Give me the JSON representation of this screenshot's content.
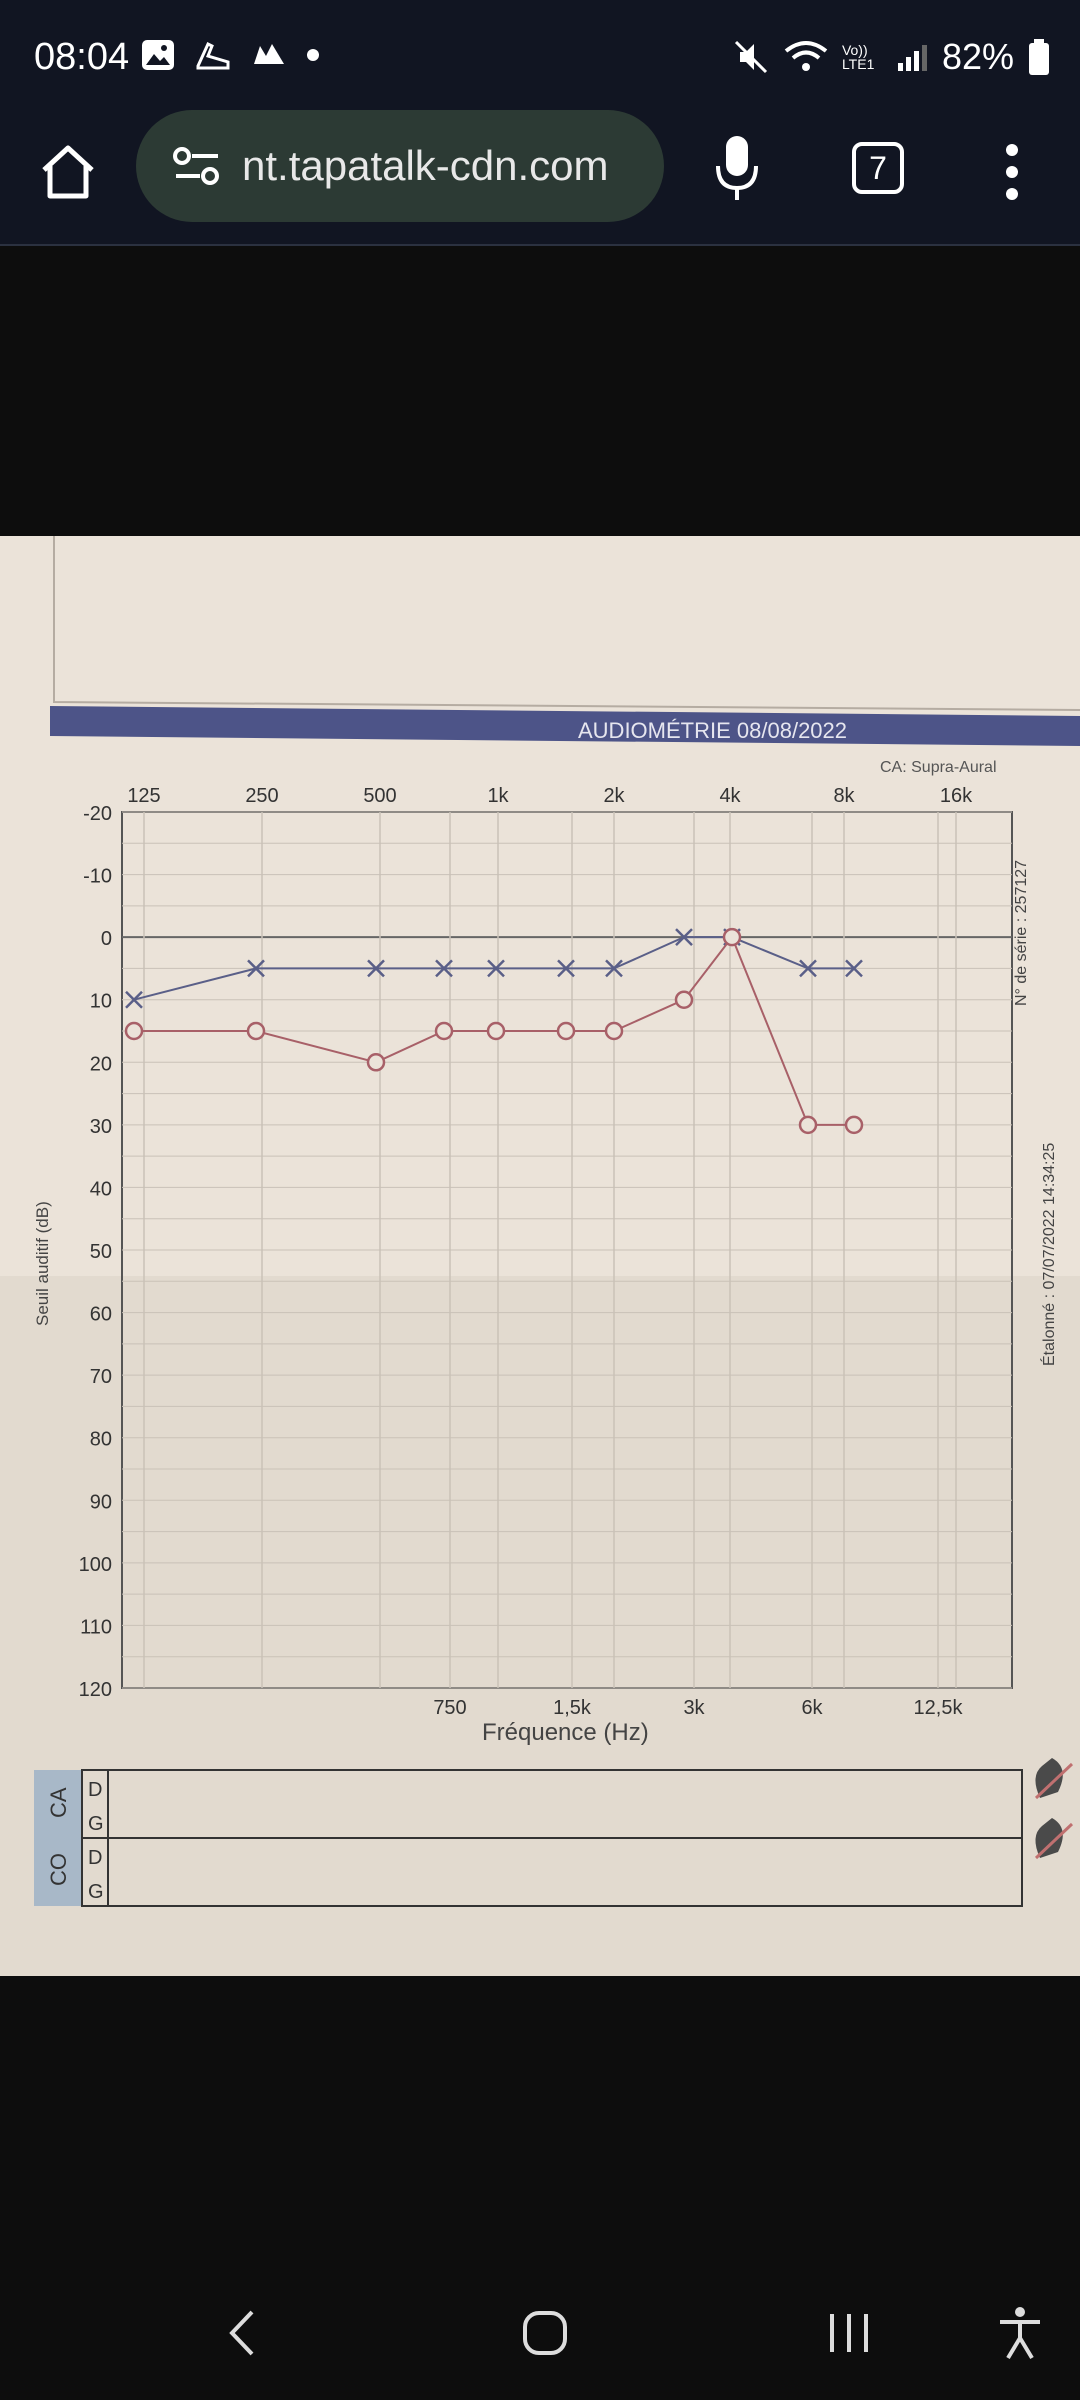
{
  "status_bar": {
    "time": "08:04",
    "battery": "82%",
    "network": "Vo)) LTE1"
  },
  "browser": {
    "url": "nt.tapatalk-cdn.com",
    "tab_count": "7"
  },
  "audiogram": {
    "header": "AUDIOMÉTRIE  08/08/2022",
    "headphone_type": "CA: Supra-Aural",
    "serial": "N° de série : 257127",
    "calibrated": "Étalonné : 07/07/2022 14:34:25",
    "y_axis_label": "Seuil auditif (dB)",
    "x_axis_label": "Fréquence (Hz)",
    "top_freq_labels": [
      "125",
      "250",
      "500",
      "1k",
      "2k",
      "4k",
      "8k",
      "16k"
    ],
    "bottom_freq_labels": [
      "750",
      "1,5k",
      "3k",
      "6k",
      "12,5k"
    ],
    "db_labels": [
      "-20",
      "-10",
      "0",
      "10",
      "20",
      "30",
      "40",
      "50",
      "60",
      "70",
      "80",
      "90",
      "100",
      "110",
      "120"
    ],
    "table_labels": {
      "ca": "CA",
      "co": "CO",
      "d": "D",
      "g": "G"
    }
  },
  "chart_data": {
    "type": "line",
    "x_ticks": [
      "125",
      "250",
      "500",
      "750",
      "1k",
      "1,5k",
      "2k",
      "3k",
      "4k",
      "6k",
      "8k"
    ],
    "series": [
      {
        "marker": "x",
        "values": [
          10,
          5,
          5,
          5,
          5,
          5,
          5,
          0,
          0,
          5,
          5
        ]
      },
      {
        "marker": "o",
        "values": [
          15,
          15,
          20,
          15,
          15,
          15,
          15,
          10,
          0,
          30,
          30
        ]
      }
    ],
    "ylim": [
      -20,
      120
    ]
  }
}
